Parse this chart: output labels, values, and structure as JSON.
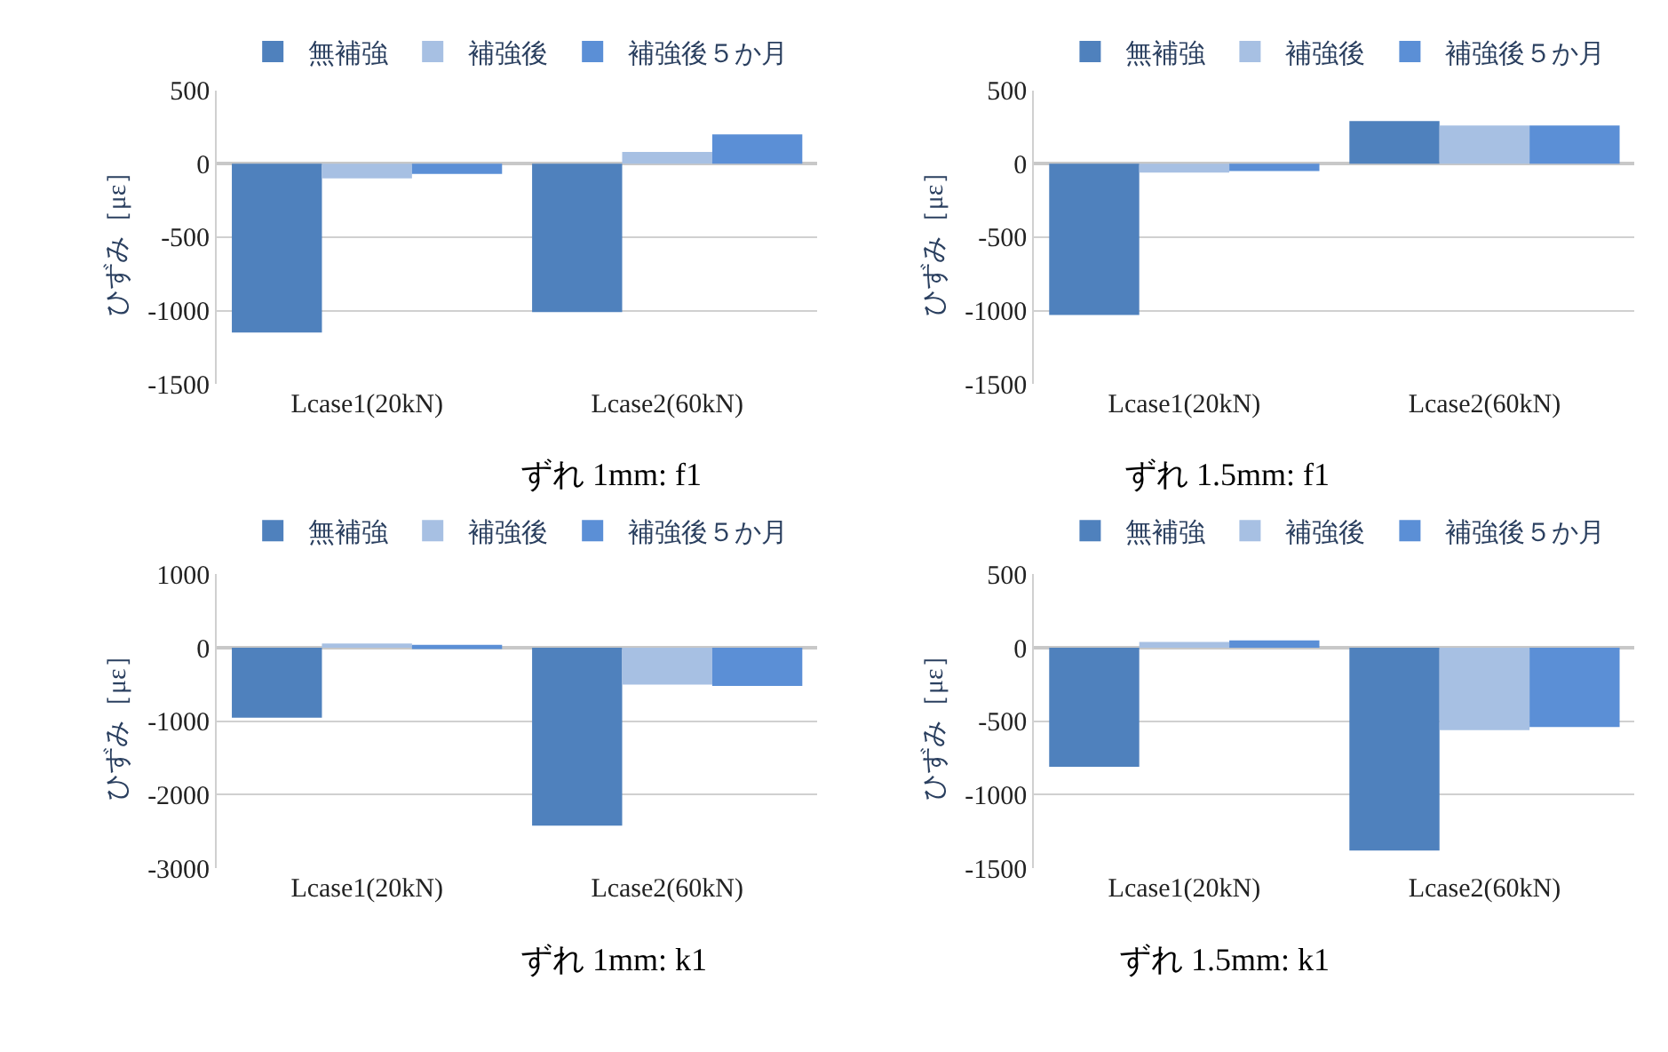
{
  "chart_data": [
    {
      "type": "bar",
      "title": "ずれ 1mm: f1",
      "ylabel": "ひずみ［με］",
      "categories": [
        "Lcase1(20kN)",
        "Lcase2(60kN)"
      ],
      "series": [
        {
          "name": "無補強",
          "color": "#4f81bd",
          "values": [
            -1150,
            -1010
          ]
        },
        {
          "name": "補強後",
          "color": "#a7c0e3",
          "values": [
            -100,
            80
          ]
        },
        {
          "name": "補強後５か月",
          "color": "#5b8fd6",
          "values": [
            -70,
            200
          ]
        }
      ],
      "ylim": [
        -1500,
        500
      ],
      "yticks": [
        -1500,
        -1000,
        -500,
        0,
        500
      ],
      "grid": "y",
      "legend": "top"
    },
    {
      "type": "bar",
      "title": "ずれ 1.5mm: f1",
      "ylabel": "ひずみ［με］",
      "categories": [
        "Lcase1(20kN)",
        "Lcase2(60kN)"
      ],
      "series": [
        {
          "name": "無補強",
          "color": "#4f81bd",
          "values": [
            -1030,
            290
          ]
        },
        {
          "name": "補強後",
          "color": "#a7c0e3",
          "values": [
            -60,
            260
          ]
        },
        {
          "name": "補強後５か月",
          "color": "#5b8fd6",
          "values": [
            -50,
            260
          ]
        }
      ],
      "ylim": [
        -1500,
        500
      ],
      "yticks": [
        -1500,
        -1000,
        -500,
        0,
        500
      ],
      "grid": "y",
      "legend": "top"
    },
    {
      "type": "bar",
      "title": "ずれ 1mm: k1",
      "ylabel": "ひずみ［με］",
      "categories": [
        "Lcase1(20kN)",
        "Lcase2(60kN)"
      ],
      "series": [
        {
          "name": "無補強",
          "color": "#4f81bd",
          "values": [
            -950,
            -2420
          ]
        },
        {
          "name": "補強後",
          "color": "#a7c0e3",
          "values": [
            60,
            -500
          ]
        },
        {
          "name": "補強後５か月",
          "color": "#5b8fd6",
          "values": [
            40,
            -520
          ]
        }
      ],
      "ylim": [
        -3000,
        1000
      ],
      "yticks": [
        -3000,
        -2000,
        -1000,
        0,
        1000
      ],
      "grid": "y",
      "legend": "top"
    },
    {
      "type": "bar",
      "title": "ずれ 1.5mm: k1",
      "ylabel": "ひずみ［με］",
      "categories": [
        "Lcase1(20kN)",
        "Lcase2(60kN)"
      ],
      "series": [
        {
          "name": "無補強",
          "color": "#4f81bd",
          "values": [
            -810,
            -1380
          ]
        },
        {
          "name": "補強後",
          "color": "#a7c0e3",
          "values": [
            40,
            -560
          ]
        },
        {
          "name": "補強後５か月",
          "color": "#5b8fd6",
          "values": [
            50,
            -540
          ]
        }
      ],
      "ylim": [
        -1500,
        500
      ],
      "yticks": [
        -1500,
        -1000,
        -500,
        0,
        500
      ],
      "grid": "y",
      "legend": "top"
    }
  ]
}
